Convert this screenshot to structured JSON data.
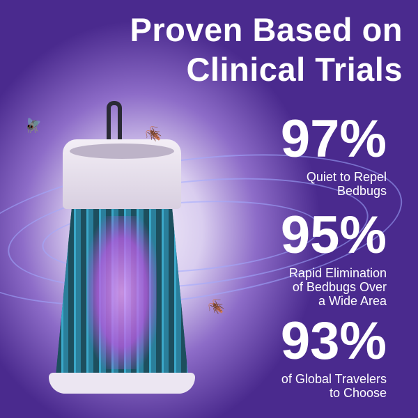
{
  "title_lines": [
    "Proven Based on",
    "Clinical Trials"
  ],
  "stats": [
    {
      "value": "97%",
      "caption_lines": [
        "Quiet to Repel",
        "Bedbugs"
      ]
    },
    {
      "value": "95%",
      "caption_lines": [
        "Rapid Elimination",
        "of Bedbugs Over",
        "a Wide Area"
      ]
    },
    {
      "value": "93%",
      "caption_lines": [
        "of Global Travelers",
        "to Choose"
      ]
    }
  ],
  "colors": {
    "background": "#4a2a8e",
    "text": "#ffffff",
    "cage": "#2a7f9b",
    "glow": "#b35ce0"
  }
}
